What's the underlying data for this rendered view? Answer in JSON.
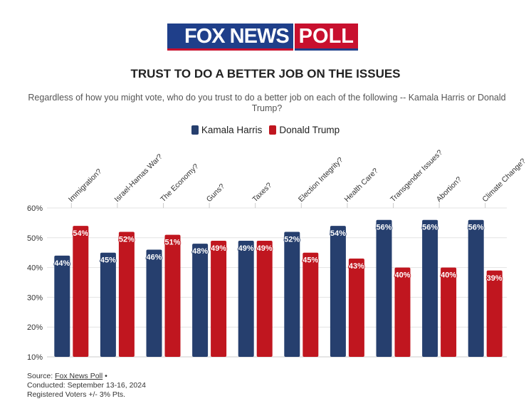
{
  "logo": {
    "fox": "FOX NEWS",
    "poll": "POLL"
  },
  "colors": {
    "harris": "#263f6e",
    "trump": "#c0161f"
  },
  "footer": {
    "source_label": "Source:",
    "source_link": "Fox News Poll",
    "source_suffix": " •",
    "conducted": "Conducted: September 13-16, 2024",
    "voters": "Registered Voters +/- 3% Pts."
  },
  "chart_data": {
    "type": "bar",
    "title": "TRUST TO DO A BETTER JOB ON THE ISSUES",
    "subtitle": "Regardless of how you might vote, who do you trust to do a better job on each of the following -- Kamala Harris or Donald Trump?",
    "categories": [
      "Immigration?",
      "Israel-Hamas War?",
      "The Economy?",
      "Guns?",
      "Taxes?",
      "Election Integrity?",
      "Health Care?",
      "Transgender Issues?",
      "Abortion?",
      "Climate Change?"
    ],
    "series": [
      {
        "name": "Kamala Harris",
        "values": [
          44,
          45,
          46,
          48,
          49,
          52,
          54,
          56,
          56,
          56
        ]
      },
      {
        "name": "Donald Trump",
        "values": [
          54,
          52,
          51,
          49,
          49,
          45,
          43,
          40,
          40,
          39
        ]
      }
    ],
    "ylim": [
      10,
      60
    ],
    "yticks": [
      "10%",
      "20%",
      "30%",
      "40%",
      "50%",
      "60%"
    ],
    "legend": "top-center",
    "grid": true
  }
}
